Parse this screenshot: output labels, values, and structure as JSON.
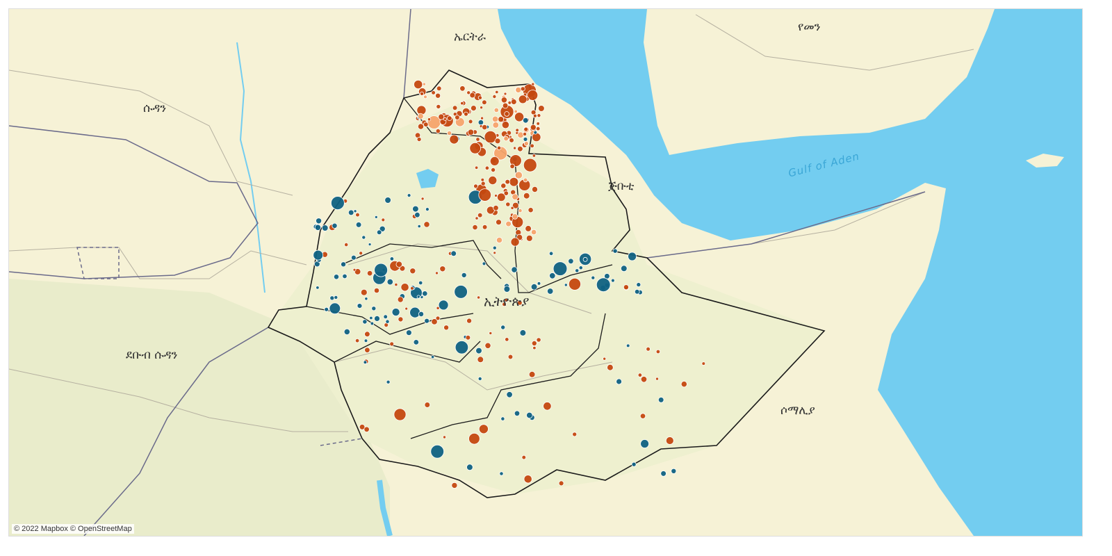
{
  "map": {
    "labels": {
      "sudan": "ሱዳን",
      "south_sudan": "ደቡብ ሱዳን",
      "eritrea": "ኤርትራ",
      "yemen": "የመን",
      "djibouti": "ጅቡቲ",
      "ethiopia": "ኢትዮጵያ",
      "somalia": "ሶማሊያ",
      "gulf_of_aden": "Gulf of Aden"
    },
    "attribution": "© 2022 Mapbox © OpenStreetMap",
    "colors": {
      "land": "#f6f2d6",
      "land_green": "#e9eccb",
      "water": "#73cdf0",
      "marker_dark_orange": "#c4480f",
      "marker_light_orange": "#f5a36c",
      "marker_blue": "#0f6182"
    }
  }
}
